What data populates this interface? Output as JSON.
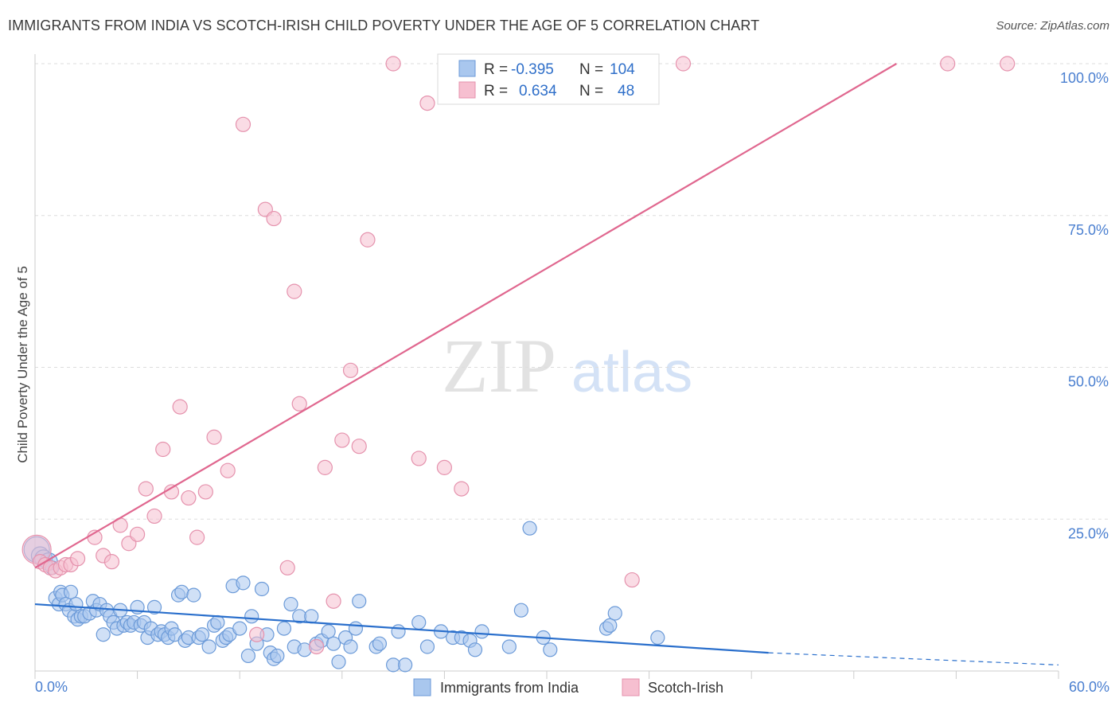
{
  "header": {
    "title": "IMMIGRANTS FROM INDIA VS SCOTCH-IRISH CHILD POVERTY UNDER THE AGE OF 5 CORRELATION CHART",
    "source": "Source: ZipAtlas.com"
  },
  "watermark": {
    "zip": "ZIP",
    "atlas": "atlas"
  },
  "colors": {
    "india_fill": "#a9c7ee",
    "india_stroke": "#6b9ad8",
    "india_line": "#2a6fcc",
    "irish_fill": "#f6bfd0",
    "irish_stroke": "#e592ad",
    "irish_line": "#e0678f",
    "grid": "#dddddd",
    "tick_text": "#4a7fd0"
  },
  "legend": {
    "rows": [
      {
        "r_label": "R =",
        "r_value": "-0.395",
        "n_label": "N =",
        "n_value": "104"
      },
      {
        "r_label": "R =",
        "r_value": "0.634",
        "n_label": "N =",
        "n_value": "48"
      }
    ]
  },
  "chart_data": {
    "type": "scatter",
    "title": "IMMIGRANTS FROM INDIA VS SCOTCH-IRISH CHILD POVERTY UNDER THE AGE OF 5 CORRELATION CHART",
    "xlabel": "",
    "ylabel": "Child Poverty Under the Age of 5",
    "xlim": [
      0,
      60
    ],
    "ylim": [
      0,
      100
    ],
    "x_tick_labels": [
      "0.0%",
      "60.0%"
    ],
    "y_ticks": [
      25,
      50,
      75,
      100
    ],
    "y_tick_labels": [
      "25.0%",
      "50.0%",
      "75.0%",
      "100.0%"
    ],
    "grid": true,
    "legend_position": "top-center",
    "series": [
      {
        "name": "Immigrants from India",
        "color": "#a9c7ee",
        "trend": {
          "x": [
            0,
            43,
            60
          ],
          "y": [
            11,
            3,
            1
          ],
          "solid_until_x": 43
        },
        "points": [
          [
            0.1,
            20
          ],
          [
            0.3,
            19
          ],
          [
            0.5,
            18.5
          ],
          [
            0.8,
            18
          ],
          [
            1.0,
            17
          ],
          [
            1.2,
            12
          ],
          [
            1.4,
            11
          ],
          [
            1.5,
            13
          ],
          [
            1.6,
            12.5
          ],
          [
            1.8,
            11
          ],
          [
            2.0,
            10
          ],
          [
            2.1,
            13
          ],
          [
            2.3,
            9
          ],
          [
            2.4,
            11
          ],
          [
            2.5,
            8.5
          ],
          [
            2.7,
            9
          ],
          [
            2.9,
            9
          ],
          [
            3.2,
            9.5
          ],
          [
            3.4,
            11.5
          ],
          [
            3.6,
            10
          ],
          [
            3.8,
            11
          ],
          [
            4.0,
            6
          ],
          [
            4.2,
            10
          ],
          [
            4.4,
            9
          ],
          [
            4.6,
            8
          ],
          [
            4.8,
            7
          ],
          [
            5.0,
            10
          ],
          [
            5.2,
            7.5
          ],
          [
            5.4,
            8
          ],
          [
            5.6,
            7.5
          ],
          [
            5.8,
            8
          ],
          [
            6.0,
            10.5
          ],
          [
            6.2,
            7.5
          ],
          [
            6.4,
            8
          ],
          [
            6.6,
            5.5
          ],
          [
            6.8,
            7
          ],
          [
            7.0,
            10.5
          ],
          [
            7.2,
            6
          ],
          [
            7.4,
            6.5
          ],
          [
            7.6,
            6
          ],
          [
            7.8,
            5.5
          ],
          [
            8.0,
            7
          ],
          [
            8.2,
            6
          ],
          [
            8.4,
            12.5
          ],
          [
            8.6,
            13
          ],
          [
            8.8,
            5
          ],
          [
            9.0,
            5.5
          ],
          [
            9.3,
            12.5
          ],
          [
            9.6,
            5.5
          ],
          [
            9.8,
            6
          ],
          [
            10.2,
            4
          ],
          [
            10.5,
            7.5
          ],
          [
            10.7,
            8
          ],
          [
            11.0,
            5
          ],
          [
            11.2,
            5.5
          ],
          [
            11.4,
            6
          ],
          [
            11.6,
            14
          ],
          [
            12.0,
            7
          ],
          [
            12.2,
            14.5
          ],
          [
            12.5,
            2.5
          ],
          [
            12.7,
            9
          ],
          [
            13.0,
            4.5
          ],
          [
            13.3,
            13.5
          ],
          [
            13.6,
            6
          ],
          [
            13.8,
            3
          ],
          [
            14.0,
            2
          ],
          [
            14.2,
            2.5
          ],
          [
            14.6,
            7
          ],
          [
            15.0,
            11
          ],
          [
            15.2,
            4
          ],
          [
            15.5,
            9
          ],
          [
            15.8,
            3.5
          ],
          [
            16.2,
            9
          ],
          [
            16.5,
            4.5
          ],
          [
            16.8,
            5
          ],
          [
            17.2,
            6.5
          ],
          [
            17.5,
            4.5
          ],
          [
            17.8,
            1.5
          ],
          [
            18.2,
            5.5
          ],
          [
            18.5,
            4
          ],
          [
            18.8,
            7
          ],
          [
            19.0,
            11.5
          ],
          [
            20.0,
            4
          ],
          [
            20.2,
            4.5
          ],
          [
            21.0,
            1
          ],
          [
            21.3,
            6.5
          ],
          [
            21.7,
            1
          ],
          [
            22.5,
            8
          ],
          [
            23.0,
            4
          ],
          [
            23.8,
            6.5
          ],
          [
            24.5,
            5.5
          ],
          [
            25.0,
            5.5
          ],
          [
            25.5,
            5
          ],
          [
            25.8,
            3.5
          ],
          [
            26.2,
            6.5
          ],
          [
            27.8,
            4
          ],
          [
            28.5,
            10
          ],
          [
            29.0,
            23.5
          ],
          [
            29.8,
            5.5
          ],
          [
            30.2,
            3.5
          ],
          [
            33.5,
            7
          ],
          [
            33.7,
            7.5
          ],
          [
            34.0,
            9.5
          ],
          [
            36.5,
            5.5
          ]
        ]
      },
      {
        "name": "Scotch-Irish",
        "color": "#f6bfd0",
        "trend": {
          "x": [
            0,
            50.5
          ],
          "y": [
            17,
            100
          ]
        },
        "points": [
          [
            0.1,
            20
          ],
          [
            0.3,
            18
          ],
          [
            0.6,
            17.5
          ],
          [
            0.9,
            17
          ],
          [
            1.2,
            16.5
          ],
          [
            1.5,
            17
          ],
          [
            1.8,
            17.5
          ],
          [
            2.1,
            17.5
          ],
          [
            2.5,
            18.5
          ],
          [
            3.5,
            22
          ],
          [
            4.0,
            19
          ],
          [
            4.5,
            18
          ],
          [
            5.0,
            24
          ],
          [
            5.5,
            21
          ],
          [
            6.0,
            22.5
          ],
          [
            6.5,
            30
          ],
          [
            7.0,
            25.5
          ],
          [
            7.5,
            36.5
          ],
          [
            8.0,
            29.5
          ],
          [
            8.5,
            43.5
          ],
          [
            9.0,
            28.5
          ],
          [
            9.5,
            22
          ],
          [
            10.0,
            29.5
          ],
          [
            10.5,
            38.5
          ],
          [
            11.3,
            33
          ],
          [
            12.2,
            90
          ],
          [
            13.0,
            6
          ],
          [
            13.5,
            76
          ],
          [
            14.0,
            74.5
          ],
          [
            14.8,
            17
          ],
          [
            15.2,
            62.5
          ],
          [
            15.5,
            44
          ],
          [
            16.5,
            4
          ],
          [
            17.0,
            33.5
          ],
          [
            17.5,
            11.5
          ],
          [
            18.0,
            38
          ],
          [
            18.5,
            49.5
          ],
          [
            19.0,
            37
          ],
          [
            19.5,
            71
          ],
          [
            21.0,
            100
          ],
          [
            22.5,
            35
          ],
          [
            23.0,
            93.5
          ],
          [
            24.0,
            33.5
          ],
          [
            25.0,
            30
          ],
          [
            35.0,
            15
          ],
          [
            38.0,
            100
          ],
          [
            53.5,
            100
          ],
          [
            57.0,
            100
          ]
        ]
      }
    ]
  },
  "bottom_legend": [
    {
      "label": "Immigrants from India"
    },
    {
      "label": "Scotch-Irish"
    }
  ]
}
